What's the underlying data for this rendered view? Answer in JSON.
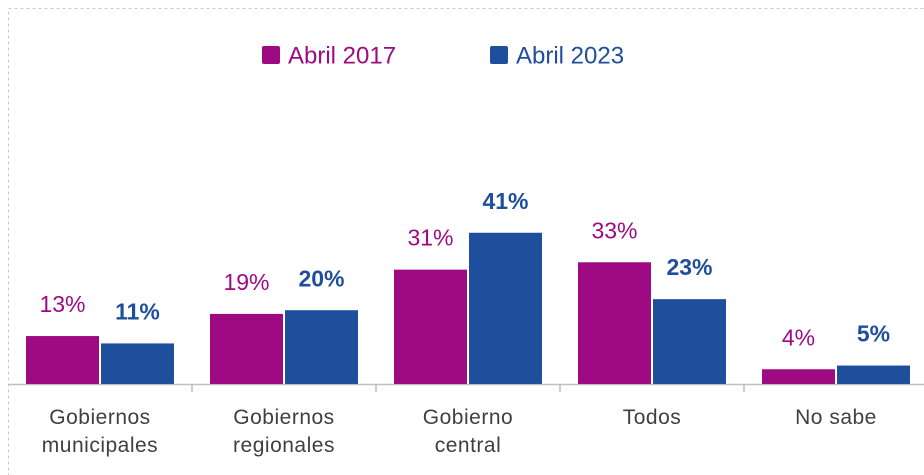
{
  "chart_data": {
    "type": "bar",
    "categories": [
      "Gobiernos municipales",
      "Gobiernos regionales",
      "Gobierno central",
      "Todos",
      "No sabe"
    ],
    "series": [
      {
        "name": "Abril 2017",
        "color": "#9e0a82",
        "values": [
          13,
          19,
          31,
          33,
          4
        ],
        "value_labels": [
          "13%",
          "19%",
          "31%",
          "33%",
          "4%"
        ]
      },
      {
        "name": "Abril 2023",
        "color": "#1f4e9c",
        "values": [
          11,
          20,
          41,
          23,
          5
        ],
        "value_labels": [
          "11%",
          "20%",
          "41%",
          "23%",
          "5%"
        ]
      }
    ],
    "ylim": [
      0,
      45
    ],
    "legend": "top"
  }
}
